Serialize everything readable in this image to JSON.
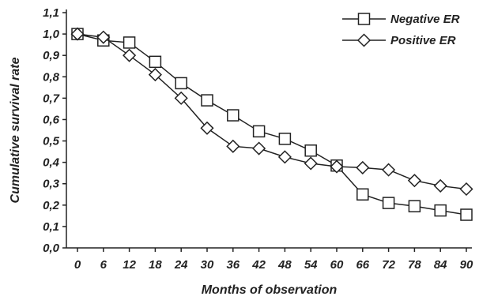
{
  "chart_data": {
    "type": "line",
    "title": "",
    "xlabel": "Months of observation",
    "ylabel": "Cumulative survival rate",
    "x": [
      0,
      6,
      12,
      18,
      24,
      30,
      36,
      42,
      48,
      54,
      60,
      66,
      72,
      78,
      84,
      90
    ],
    "x_tick_labels": [
      "0",
      "6",
      "12",
      "18",
      "24",
      "30",
      "36",
      "42",
      "48",
      "54",
      "60",
      "66",
      "72",
      "78",
      "84",
      "90"
    ],
    "y_tick_labels": [
      "0,0",
      "0,1",
      "0,2",
      "0,3",
      "0,4",
      "0,5",
      "0,6",
      "0,7",
      "0,8",
      "0,9",
      "1,0",
      "1,1"
    ],
    "ylim": [
      0,
      1.1
    ],
    "grid": false,
    "legend_position": "top-right",
    "series": [
      {
        "name": "Negative ER",
        "marker": "square",
        "color": "#222222",
        "values": [
          1.0,
          0.97,
          0.96,
          0.87,
          0.77,
          0.69,
          0.62,
          0.545,
          0.51,
          0.455,
          0.385,
          0.25,
          0.21,
          0.195,
          0.175,
          0.155
        ]
      },
      {
        "name": "Positive ER",
        "marker": "diamond",
        "color": "#222222",
        "values": [
          1.0,
          0.985,
          0.9,
          0.81,
          0.7,
          0.56,
          0.475,
          0.465,
          0.425,
          0.395,
          0.38,
          0.375,
          0.365,
          0.315,
          0.29,
          0.275
        ]
      }
    ]
  }
}
